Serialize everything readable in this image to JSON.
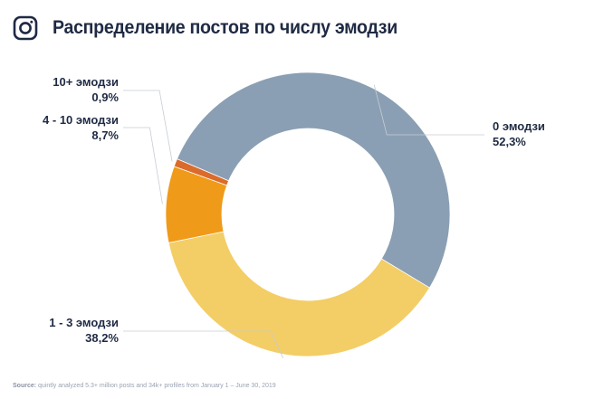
{
  "header": {
    "icon": "instagram-icon",
    "title": "Распределение постов по числу эмодзи"
  },
  "chart_data": {
    "type": "pie",
    "donut": true,
    "title": "Распределение постов по числу эмодзи",
    "series": [
      {
        "name": "0 эмодзи",
        "value": 52.3,
        "value_label": "52,3%",
        "color": "#8a9fb3"
      },
      {
        "name": "1 - 3 эмодзи",
        "value": 38.2,
        "value_label": "38,2%",
        "color": "#f3cd66"
      },
      {
        "name": "4 - 10 эмодзи",
        "value": 8.7,
        "value_label": "8,7%",
        "color": "#f09a1a"
      },
      {
        "name": "10+ эмодзи",
        "value": 0.9,
        "value_label": "0,9%",
        "color": "#db6b2a"
      }
    ]
  },
  "source": {
    "prefix": "Source:",
    "text": "quintly analyzed 5.3+ million posts and 34k+ profiles from January 1 – June 30, 2019"
  }
}
